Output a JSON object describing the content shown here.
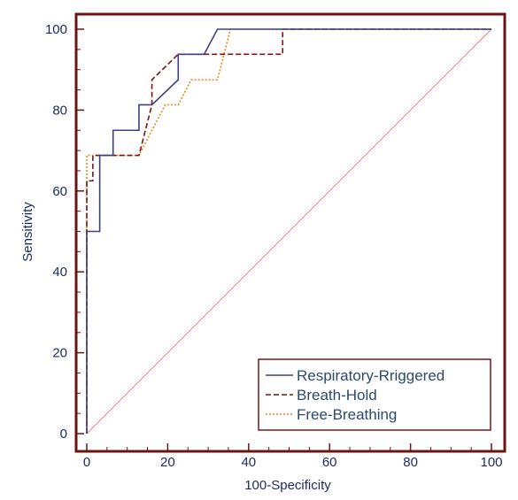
{
  "chart_data": {
    "type": "line",
    "title": "",
    "xlabel": "100-Specificity",
    "ylabel": "Sensitivity",
    "xlim": [
      0,
      100
    ],
    "ylim": [
      0,
      100
    ],
    "xticks": [
      0,
      20,
      40,
      60,
      80,
      100
    ],
    "yticks": [
      0,
      20,
      40,
      60,
      80,
      100
    ],
    "grid": false,
    "legend_position": "bottom-right",
    "frame_color": "#6b1414",
    "reference_line": {
      "x": [
        0,
        100
      ],
      "y": [
        0,
        100
      ],
      "color": "#d9807a"
    },
    "series": [
      {
        "name": "Respiratory-Rriggered",
        "color": "#3f3f85",
        "dash": "solid",
        "x": [
          0,
          0,
          3.2,
          3.2,
          6.5,
          6.5,
          12.9,
          12.9,
          16.1,
          22.6,
          22.6,
          29,
          32.3,
          32.3,
          100
        ],
        "y": [
          0,
          50,
          50,
          68.8,
          68.8,
          75,
          75,
          81.3,
          81.3,
          87.5,
          93.8,
          93.8,
          100,
          100,
          100
        ]
      },
      {
        "name": "Breath-Hold",
        "color": "#7a1515",
        "dash": "dashed",
        "x": [
          0,
          0,
          0,
          1.5,
          1.5,
          12.9,
          16.1,
          16.1,
          22.6,
          48.4,
          48.4,
          100
        ],
        "y": [
          0,
          50,
          62.5,
          62.5,
          68.8,
          68.8,
          81.3,
          87.5,
          93.8,
          93.8,
          100,
          100
        ]
      },
      {
        "name": "Free-Breathing",
        "color": "#e88a1a",
        "dash": "dotted",
        "x": [
          0,
          0,
          0,
          12.9,
          16.1,
          19.4,
          22.6,
          25.8,
          32.3,
          35.5,
          35.5,
          100
        ],
        "y": [
          0,
          62.5,
          68.8,
          68.8,
          75,
          81.3,
          81.3,
          87.5,
          87.5,
          100,
          100,
          100
        ]
      }
    ]
  }
}
